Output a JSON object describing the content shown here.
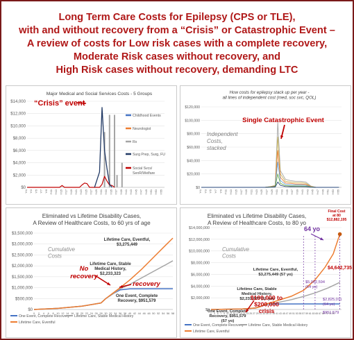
{
  "title": {
    "lines": [
      "Long Term Care Costs for Epilepsy (CPS or TLE),",
      "with and without recovery from a “Crisis” or Catastrophic Event –",
      "A review of costs for Low risk cases with a complete recovery,",
      "Moderate Risk cases without recovery, and",
      "High Risk cases without recovery, demanding LTC"
    ]
  },
  "colors": {
    "frame": "#7a1a1a",
    "accent_red": "#c00000",
    "childhood": "#4472c4",
    "neurologist": "#ed7d31",
    "rx": "#a5a5a5",
    "surg": "#203864",
    "social": "#c00000",
    "one_event": "#4472c4",
    "stable": "#a5a5a5",
    "eventful": "#ed7d31"
  },
  "chart_data": [
    {
      "type": "line",
      "title": "Major Medical and Social Services Costs - 5 Groups",
      "ylim": [
        0,
        14000
      ],
      "yticks": [
        "$0",
        "$2,000",
        "$4,000",
        "$6,000",
        "$8,000",
        "$10,000",
        "$12,000",
        "$14,000"
      ],
      "xticks": [
        "Yr1",
        "Yr3",
        "Yr5",
        "Yr7",
        "Yr9",
        "Yr11",
        "Yr13",
        "Yr15",
        "Yr17",
        "Yr19",
        "Yr21",
        "Yr23",
        "Yr25",
        "Yr27",
        "Yr29",
        "Yr31",
        "Yr33",
        "Yr35",
        "Yr37",
        "Yr39",
        "Yr41",
        "Yr43",
        "Yr45",
        "Yr47",
        "Yr49",
        "Yr51",
        "Yr53",
        "Yr55"
      ],
      "legend": [
        "Childhood Events",
        "Neurologist",
        "Rx",
        "Surg Prep, Surg, FU",
        "Social Svcs/ SenR/Welfare"
      ],
      "legend_position": "right",
      "annotation": "“Crisis” event",
      "series": [
        {
          "name": "Surg Prep, Surg, FU",
          "values": [
            [
              28,
              0
            ],
            [
              30,
              2500
            ],
            [
              31,
              13000
            ],
            [
              32,
              6000
            ],
            [
              33,
              3000
            ],
            [
              34,
              500
            ],
            [
              35,
              0
            ]
          ]
        },
        {
          "name": "Social Svcs/ SenR/Welfare",
          "values": [
            [
              1,
              0
            ],
            [
              14,
              0
            ],
            [
              15,
              300
            ],
            [
              16,
              0
            ],
            [
              22,
              0
            ],
            [
              23,
              400
            ],
            [
              24,
              700
            ],
            [
              25,
              600
            ],
            [
              26,
              0
            ],
            [
              30,
              0
            ],
            [
              31,
              500
            ],
            [
              32,
              1800
            ],
            [
              33,
              1000
            ],
            [
              34,
              400
            ],
            [
              35,
              300
            ],
            [
              36,
              0
            ]
          ]
        },
        {
          "name": "Rx",
          "bars": [
            [
              32,
              9000
            ],
            [
              34,
              11800
            ],
            [
              36,
              11800
            ],
            [
              37,
              2000
            ],
            [
              39,
              4000
            ]
          ]
        }
      ]
    },
    {
      "type": "area",
      "title": "How costs for epilepsy stack up per year -\nall lines of independent cost (med, soc svc, QOL)",
      "ylim": [
        0,
        120000
      ],
      "yticks": [
        "$0",
        "$20,000",
        "$40,000",
        "$60,000",
        "$80,000",
        "$100,000",
        "$120,000"
      ],
      "xticks": [
        "Yr1",
        "Yr3",
        "Yr5",
        "Yr7",
        "Yr9",
        "Yr11",
        "Yr13",
        "Yr15",
        "Yr17",
        "Yr19",
        "Yr21",
        "Yr23",
        "Yr25",
        "Yr27",
        "Yr29",
        "Yr31",
        "Yr33",
        "Yr35",
        "Yr37",
        "Yr39",
        "Yr41",
        "Yr43",
        "Yr45",
        "Yr47",
        "Yr49",
        "Yr51",
        "Yr53",
        "Yr55"
      ],
      "annotation": "Single Catastrophic Event",
      "note": "Independent\nCosts,\nstacked",
      "series": [
        {
          "name": "layer1",
          "values": [
            [
              1,
              0
            ],
            [
              26,
              0
            ],
            [
              28,
              1000
            ],
            [
              30,
              3000
            ],
            [
              31,
              97000
            ],
            [
              32,
              25000
            ],
            [
              34,
              12000
            ],
            [
              36,
              10000
            ],
            [
              38,
              9000
            ],
            [
              40,
              9000
            ],
            [
              42,
              8000
            ],
            [
              44,
              2000
            ],
            [
              46,
              0
            ],
            [
              55,
              0
            ]
          ]
        },
        {
          "name": "layer2",
          "values": [
            [
              1,
              0
            ],
            [
              26,
              0
            ],
            [
              28,
              1000
            ],
            [
              30,
              2500
            ],
            [
              31,
              75000
            ],
            [
              32,
              20000
            ],
            [
              34,
              9000
            ],
            [
              36,
              8000
            ],
            [
              38,
              7000
            ],
            [
              40,
              7000
            ],
            [
              42,
              6000
            ],
            [
              44,
              1500
            ],
            [
              46,
              0
            ],
            [
              55,
              0
            ]
          ]
        },
        {
          "name": "layer3",
          "values": [
            [
              1,
              0
            ],
            [
              26,
              0
            ],
            [
              28,
              800
            ],
            [
              30,
              2000
            ],
            [
              31,
              55000
            ],
            [
              32,
              15000
            ],
            [
              34,
              6500
            ],
            [
              36,
              6000
            ],
            [
              38,
              5000
            ],
            [
              40,
              5000
            ],
            [
              42,
              4500
            ],
            [
              44,
              1000
            ],
            [
              46,
              0
            ],
            [
              55,
              0
            ]
          ]
        },
        {
          "name": "layer4",
          "values": [
            [
              1,
              0
            ],
            [
              26,
              0
            ],
            [
              28,
              600
            ],
            [
              30,
              1500
            ],
            [
              31,
              38000
            ],
            [
              32,
              10000
            ],
            [
              34,
              4500
            ],
            [
              36,
              4000
            ],
            [
              38,
              3500
            ],
            [
              40,
              3500
            ],
            [
              42,
              3000
            ],
            [
              44,
              700
            ],
            [
              46,
              0
            ],
            [
              55,
              0
            ]
          ]
        },
        {
          "name": "layer5",
          "values": [
            [
              1,
              0
            ],
            [
              26,
              0
            ],
            [
              28,
              400
            ],
            [
              30,
              1000
            ],
            [
              31,
              20000
            ],
            [
              32,
              6000
            ],
            [
              34,
              2500
            ],
            [
              36,
              2200
            ],
            [
              38,
              2000
            ],
            [
              40,
              2000
            ],
            [
              42,
              1800
            ],
            [
              44,
              400
            ],
            [
              46,
              0
            ],
            [
              55,
              0
            ]
          ]
        },
        {
          "name": "layer6",
          "values": [
            [
              1,
              0
            ],
            [
              26,
              0
            ],
            [
              28,
              200
            ],
            [
              30,
              500
            ],
            [
              31,
              8000
            ],
            [
              32,
              3000
            ],
            [
              34,
              1200
            ],
            [
              36,
              1000
            ],
            [
              38,
              900
            ],
            [
              40,
              900
            ],
            [
              42,
              800
            ],
            [
              44,
              200
            ],
            [
              46,
              0
            ],
            [
              55,
              0
            ]
          ]
        }
      ]
    },
    {
      "type": "line",
      "title": "Eliminated vs Lifetime Disability Cases,\nA Review of Healthcare Costs, to 60 yrs of age",
      "ylim": [
        0,
        3500000
      ],
      "yticks": [
        "$0",
        "$500,000",
        "$1,000,000",
        "$1,500,000",
        "$2,000,000",
        "$2,500,000",
        "$3,000,000",
        "$3,500,000"
      ],
      "xticks": [
        "0",
        "2",
        "4",
        "6",
        "8",
        "10",
        "12",
        "14",
        "16",
        "18",
        "20",
        "22",
        "24",
        "26",
        "28",
        "30",
        "32",
        "34",
        "36",
        "38",
        "40",
        "42",
        "44",
        "46",
        "48",
        "50",
        "52",
        "54",
        "56",
        "58"
      ],
      "legend": [
        "One Event, Complete Recovery",
        "Lifetime Care, Stable Medical History",
        "Lifetime Care, Eventful"
      ],
      "legend_position": "bottom",
      "note": "Cumulative\nCosts",
      "annotations": [
        "Lifetime Care, Eventful,\n$3,275,449",
        "Lifetime Care, Stable\nMedical History,\n$2,233,323",
        "One Event, Complete\nRecovery, $951,579",
        "No\nrecovery",
        "recovery"
      ],
      "series": [
        {
          "name": "One Event, Complete Recovery",
          "values": [
            [
              0,
              0
            ],
            [
              10,
              50000
            ],
            [
              20,
              150000
            ],
            [
              28,
              300000
            ],
            [
              30,
              500000
            ],
            [
              33,
              720000
            ],
            [
              36,
              900000
            ],
            [
              40,
              945000
            ],
            [
              58,
              951579
            ]
          ]
        },
        {
          "name": "Lifetime Care, Stable Medical History",
          "values": [
            [
              0,
              0
            ],
            [
              10,
              50000
            ],
            [
              20,
              150000
            ],
            [
              28,
              300000
            ],
            [
              30,
              500000
            ],
            [
              33,
              720000
            ],
            [
              36,
              950000
            ],
            [
              40,
              1150000
            ],
            [
              45,
              1450000
            ],
            [
              50,
              1750000
            ],
            [
              55,
              2050000
            ],
            [
              58,
              2233323
            ]
          ]
        },
        {
          "name": "Lifetime Care, Eventful",
          "values": [
            [
              0,
              0
            ],
            [
              10,
              50000
            ],
            [
              20,
              150000
            ],
            [
              28,
              300000
            ],
            [
              30,
              500000
            ],
            [
              33,
              750000
            ],
            [
              36,
              1000000
            ],
            [
              40,
              1350000
            ],
            [
              45,
              1850000
            ],
            [
              50,
              2400000
            ],
            [
              55,
              2950000
            ],
            [
              58,
              3275449
            ]
          ]
        }
      ]
    },
    {
      "type": "line",
      "title": "Eliminated vs Lifetime Disability Cases,\nA Review of Healthcare Costs, to 80 yo",
      "ylim": [
        0,
        14000000
      ],
      "yticks": [
        "$0",
        "$2,000,000",
        "$4,000,000",
        "$6,000,000",
        "$8,000,000",
        "$10,000,000",
        "$12,000,000",
        "$14,000,000"
      ],
      "xticks": [
        "1",
        "3",
        "5",
        "7",
        "9",
        "11",
        "13",
        "15",
        "17",
        "19",
        "21",
        "23",
        "25",
        "27",
        "29",
        "31",
        "33",
        "35",
        "37",
        "39",
        "41",
        "43",
        "45",
        "47",
        "49",
        "51",
        "53",
        "55",
        "57",
        "59",
        "61",
        "63",
        "65",
        "67",
        "69",
        "71",
        "73",
        "75"
      ],
      "legend": [
        "One Event, Complete Recovery",
        "Lifetime Care, Stable Medical History",
        "Lifetime Care, Eventful"
      ],
      "legend_position": "bottom",
      "note": "Cumulative\nCosts",
      "annotations": [
        "Final Cost\nat 80\n$12,882,195",
        "64 yo",
        "Lifetime Care, Eventful,\n$3,275,449 (57 yo)",
        "$5,062,594\n(64 yo)",
        "Lifetime Care, Stable\nMedical History,\n$2,233,323 (57 yo)",
        "$4,642,735",
        "$2,825,011\n(64 yo)",
        "$951,579",
        "One Event, Complete\nRecovery, $951,579\n(57 yo)",
        "$100,000 to\n$200,000\ncrisis"
      ],
      "series": [
        {
          "name": "One Event, Complete Recovery",
          "values": [
            [
              1,
              0
            ],
            [
              20,
              100000
            ],
            [
              28,
              250000
            ],
            [
              31,
              500000
            ],
            [
              34,
              800000
            ],
            [
              38,
              940000
            ],
            [
              57,
              951579
            ],
            [
              79,
              951579
            ]
          ]
        },
        {
          "name": "Lifetime Care, Stable Medical History",
          "values": [
            [
              1,
              0
            ],
            [
              20,
              100000
            ],
            [
              28,
              250000
            ],
            [
              31,
              500000
            ],
            [
              34,
              800000
            ],
            [
              40,
              1100000
            ],
            [
              50,
              1700000
            ],
            [
              57,
              2233323
            ],
            [
              64,
              2825011
            ],
            [
              72,
              3700000
            ],
            [
              79,
              4642735
            ]
          ]
        },
        {
          "name": "Lifetime Care, Eventful",
          "values": [
            [
              1,
              0
            ],
            [
              20,
              100000
            ],
            [
              28,
              250000
            ],
            [
              31,
              500000
            ],
            [
              34,
              900000
            ],
            [
              40,
              1400000
            ],
            [
              50,
              2300000
            ],
            [
              57,
              3275449
            ],
            [
              64,
              5062594
            ],
            [
              70,
              7200000
            ],
            [
              75,
              9500000
            ],
            [
              79,
              12882195
            ]
          ]
        }
      ]
    }
  ]
}
